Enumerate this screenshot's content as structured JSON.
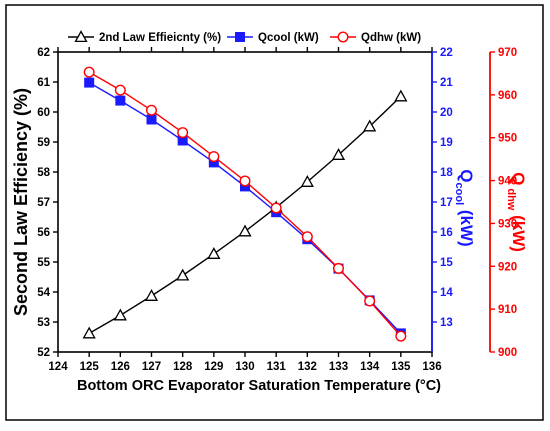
{
  "chart_data": {
    "type": "line",
    "x": [
      125,
      126,
      127,
      128,
      129,
      130,
      131,
      132,
      133,
      134,
      135
    ],
    "xlabel": "Bottom ORC Evaporator Saturation Temperature (°C)",
    "xlim": [
      124,
      136
    ],
    "xticks": [
      "124",
      "125",
      "126",
      "127",
      "128",
      "129",
      "130",
      "131",
      "132",
      "133",
      "134",
      "135",
      "136"
    ],
    "axes": [
      {
        "id": "left",
        "label": "Second Law Efficiency (%)",
        "ylim": [
          52,
          62
        ],
        "ticks": [
          "52",
          "53",
          "54",
          "55",
          "56",
          "57",
          "58",
          "59",
          "60",
          "61",
          "62"
        ],
        "color": "#000000"
      },
      {
        "id": "right1",
        "label_main": "Q",
        "label_sub": "cool",
        "label_unit": "(kW)",
        "ylim": [
          12,
          22
        ],
        "ticks": [
          "13",
          "14",
          "15",
          "16",
          "17",
          "18",
          "19",
          "20",
          "21",
          "22"
        ],
        "color": "#1a1aff"
      },
      {
        "id": "right2",
        "label_main": "Q",
        "label_sub": "dhw",
        "label_unit": "(kW)",
        "ylim": [
          900,
          970
        ],
        "ticks": [
          "900",
          "910",
          "920",
          "930",
          "940",
          "950",
          "960",
          "970"
        ],
        "color": "#ff0000"
      }
    ],
    "series": [
      {
        "name": "2nd Law Effieicnty (%)",
        "axis": "left",
        "color": "#000000",
        "marker": "triangle-open",
        "values": [
          52.62,
          53.22,
          53.87,
          54.55,
          55.27,
          56.02,
          56.82,
          57.67,
          58.57,
          59.52,
          60.52
        ]
      },
      {
        "name": "Qcool (kW)",
        "axis": "right1",
        "color": "#1a1aff",
        "marker": "square-filled",
        "values": [
          20.98,
          20.38,
          19.75,
          19.05,
          18.32,
          17.52,
          16.66,
          15.76,
          14.78,
          13.72,
          12.62
        ]
      },
      {
        "name": "Qdhw (kW)",
        "axis": "right2",
        "color": "#ff0000",
        "marker": "circle-open",
        "values": [
          965.3,
          961.1,
          956.4,
          951.2,
          945.6,
          939.9,
          933.6,
          926.9,
          919.5,
          911.9,
          903.7
        ]
      }
    ],
    "legend_position": "top"
  }
}
